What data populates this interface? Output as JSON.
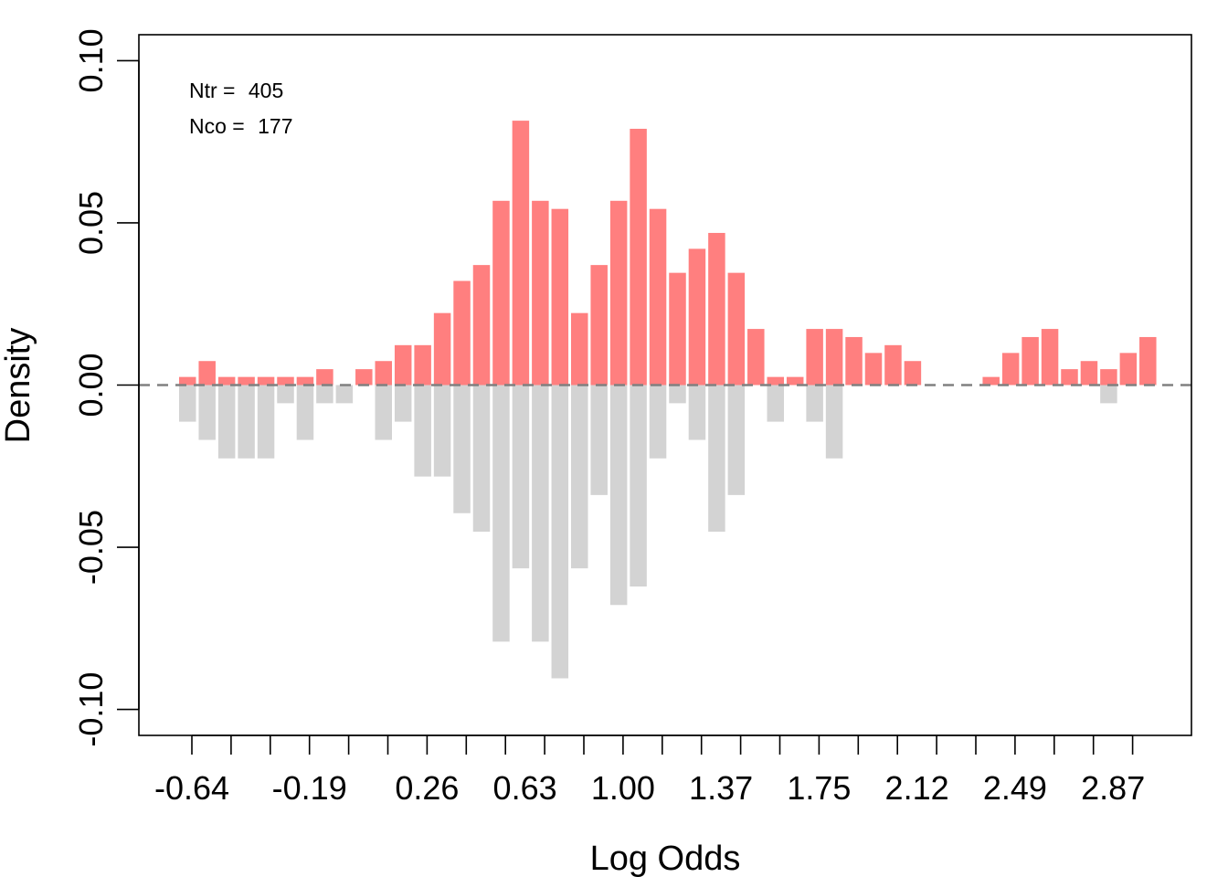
{
  "chart_data": {
    "type": "bar",
    "title": "",
    "xlabel": "Log Odds",
    "ylabel": "Density",
    "ylim": [
      -0.108,
      0.108
    ],
    "yticks": [
      -0.1,
      -0.05,
      0.0,
      0.05,
      0.1
    ],
    "ytick_labels": [
      "-0.10",
      "-0.05",
      "0.00",
      "0.05",
      "0.10"
    ],
    "xtick_labels": [
      "-0.64",
      "-0.19",
      "0.26",
      "0.63",
      "1.00",
      "1.37",
      "1.75",
      "2.12",
      "2.49",
      "2.87"
    ],
    "annotations": [
      {
        "label": "Ntr = ",
        "value": "405"
      },
      {
        "label": "Nco = ",
        "value": "177"
      }
    ],
    "legend": "none",
    "grid": false,
    "colors": {
      "treated": "#ff7f7f",
      "control": "#d3d3d3",
      "zero_line": "#808080"
    },
    "series": [
      {
        "values": [
          0.0025,
          0.0074,
          0.0025,
          0.0025,
          0.0025,
          0.0025,
          0.0025,
          0.0049,
          0.0,
          0.0049,
          0.0074,
          0.0123,
          0.0123,
          0.0222,
          0.0321,
          0.037,
          0.0568,
          0.0815,
          0.0568,
          0.0543,
          0.0222,
          0.037,
          0.0568,
          0.079,
          0.0543,
          0.0346,
          0.042,
          0.0469,
          0.0346,
          0.0173,
          0.0025,
          0.0025,
          0.0173,
          0.0173,
          0.0148,
          0.0099,
          0.0123,
          0.0074,
          0.0,
          0.0,
          0.0,
          0.0025,
          0.0099,
          0.0148,
          0.0173,
          0.0049,
          0.0074,
          0.0049,
          0.0099,
          0.0148
        ]
      },
      {
        "values": [
          -0.0113,
          -0.0169,
          -0.0226,
          -0.0226,
          -0.0226,
          -0.0056,
          -0.0169,
          -0.0056,
          -0.0056,
          0.0,
          -0.0169,
          -0.0113,
          -0.0282,
          -0.0282,
          -0.0395,
          -0.0452,
          -0.0791,
          -0.0565,
          -0.0791,
          -0.0904,
          -0.0565,
          -0.0339,
          -0.0678,
          -0.0621,
          -0.0226,
          -0.0056,
          -0.0169,
          -0.0452,
          -0.0339,
          0.0,
          -0.0113,
          0.0,
          -0.0113,
          -0.0226,
          0.0,
          0.0,
          0.0,
          0.0,
          0.0,
          0.0,
          0.0,
          0.0,
          0.0,
          0.0,
          0.0,
          0.0,
          0.0,
          -0.0056,
          0.0,
          0.0
        ]
      }
    ]
  }
}
